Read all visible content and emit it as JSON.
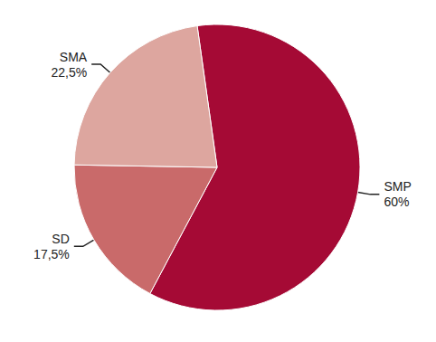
{
  "chart_data": {
    "type": "pie",
    "categories": [
      "SMP",
      "SD",
      "SMA"
    ],
    "values": [
      60,
      17.5,
      22.5
    ],
    "value_labels": [
      "60%",
      "17,5%",
      "22,5%"
    ],
    "colors": [
      "#a50a35",
      "#c96a6a",
      "#dda69f"
    ],
    "data_labels": true
  }
}
